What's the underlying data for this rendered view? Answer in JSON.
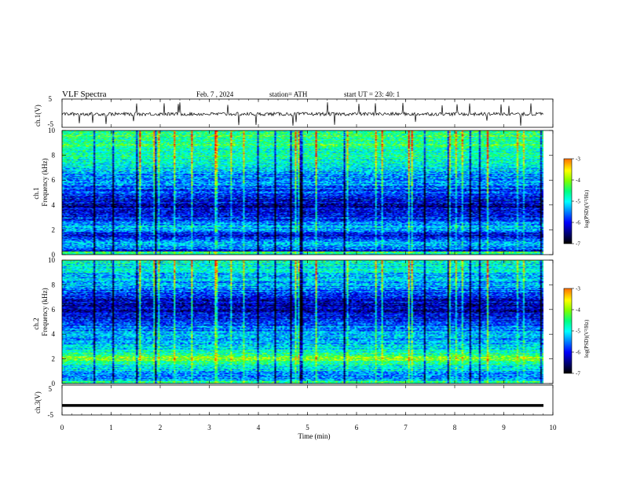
{
  "header": {
    "title": "VLF  Spectra",
    "date": "Feb. 7  , 2024",
    "station": "station= ATH",
    "start": "start  UT  =   23: 40: 1"
  },
  "chart_data": [
    {
      "type": "line",
      "panel": "ch1-waveform",
      "ylabel": "ch.1(V)",
      "ylim": [
        -5,
        5
      ],
      "yticks": [
        "5",
        "-5"
      ],
      "xlim": [
        0,
        10
      ],
      "baseline_v": -0.3,
      "spike_minutes": [
        0.35,
        0.62,
        0.9,
        1.45,
        1.52,
        2.08,
        2.36,
        2.4,
        3.38,
        3.6,
        3.95,
        4.7,
        4.76,
        5.4,
        5.55,
        6.05,
        6.38,
        6.95,
        7.2,
        7.75,
        8.05,
        8.3,
        8.65,
        8.95,
        9.1,
        9.35,
        9.55
      ]
    },
    {
      "type": "heatmap",
      "panel": "ch1-spectrogram",
      "ylabel": "Frequency  (kHz)",
      "channel_label": "ch.1",
      "ylim": [
        0,
        10
      ],
      "yticks": [
        "0",
        "2",
        "4",
        "6",
        "8",
        "10"
      ],
      "xlim": [
        0,
        9.8
      ],
      "color_range": [
        -7,
        -3
      ],
      "colorbar_label": "log(PSD)(V²/Hz)",
      "colorbar_ticks": [
        "-3",
        "-4",
        "-5",
        "-6",
        "-7"
      ],
      "band_profile_khz": [
        {
          "f": 0.2,
          "level": -6.2
        },
        {
          "f": 0.8,
          "level": -5.2
        },
        {
          "f": 1.5,
          "level": -6.1
        },
        {
          "f": 2.2,
          "level": -5.4
        },
        {
          "f": 3.0,
          "level": -6.0
        },
        {
          "f": 4.0,
          "level": -6.4
        },
        {
          "f": 5.0,
          "level": -5.9
        },
        {
          "f": 6.0,
          "level": -5.6
        },
        {
          "f": 7.0,
          "level": -5.2
        },
        {
          "f": 8.0,
          "level": -4.9
        },
        {
          "f": 9.0,
          "level": -4.8
        },
        {
          "f": 10.0,
          "level": -4.7
        }
      ]
    },
    {
      "type": "heatmap",
      "panel": "ch2-spectrogram",
      "ylabel": "Frequency  (kHz)",
      "channel_label": "ch.2",
      "ylim": [
        0,
        10
      ],
      "yticks": [
        "0",
        "2",
        "4",
        "6",
        "8",
        "10"
      ],
      "xlim": [
        0,
        9.8
      ],
      "color_range": [
        -7,
        -3
      ],
      "colorbar_label": "log(PSD)(V²/Hz)",
      "colorbar_ticks": [
        "-3",
        "-4",
        "-5",
        "-6",
        "-7"
      ],
      "band_profile_khz": [
        {
          "f": 0.2,
          "level": -5.6
        },
        {
          "f": 0.8,
          "level": -5.4
        },
        {
          "f": 1.5,
          "level": -5.0
        },
        {
          "f": 2.0,
          "level": -4.3
        },
        {
          "f": 2.5,
          "level": -5.0
        },
        {
          "f": 3.0,
          "level": -5.3
        },
        {
          "f": 4.0,
          "level": -5.5
        },
        {
          "f": 5.0,
          "level": -6.0
        },
        {
          "f": 6.0,
          "level": -6.3
        },
        {
          "f": 7.0,
          "level": -6.1
        },
        {
          "f": 8.0,
          "level": -5.6
        },
        {
          "f": 9.0,
          "level": -5.2
        },
        {
          "f": 10.0,
          "level": -5.0
        }
      ]
    },
    {
      "type": "line",
      "panel": "ch3-waveform",
      "ylabel": "ch.3(V)",
      "ylim": [
        -5,
        5
      ],
      "yticks": [
        "5",
        "-5"
      ],
      "xlim": [
        0,
        10
      ],
      "baseline_v": -1.8
    }
  ],
  "xaxis": {
    "label": "Time  (min)",
    "ticks": [
      "0",
      "1",
      "2",
      "3",
      "4",
      "5",
      "6",
      "7",
      "8",
      "9",
      "10"
    ]
  },
  "colormap": [
    "#000000",
    "#00007f",
    "#0000ff",
    "#007fff",
    "#00ffff",
    "#00ff7f",
    "#7fff00",
    "#ffff00",
    "#ff7f00",
    "#ff0000",
    "#ffffff"
  ]
}
